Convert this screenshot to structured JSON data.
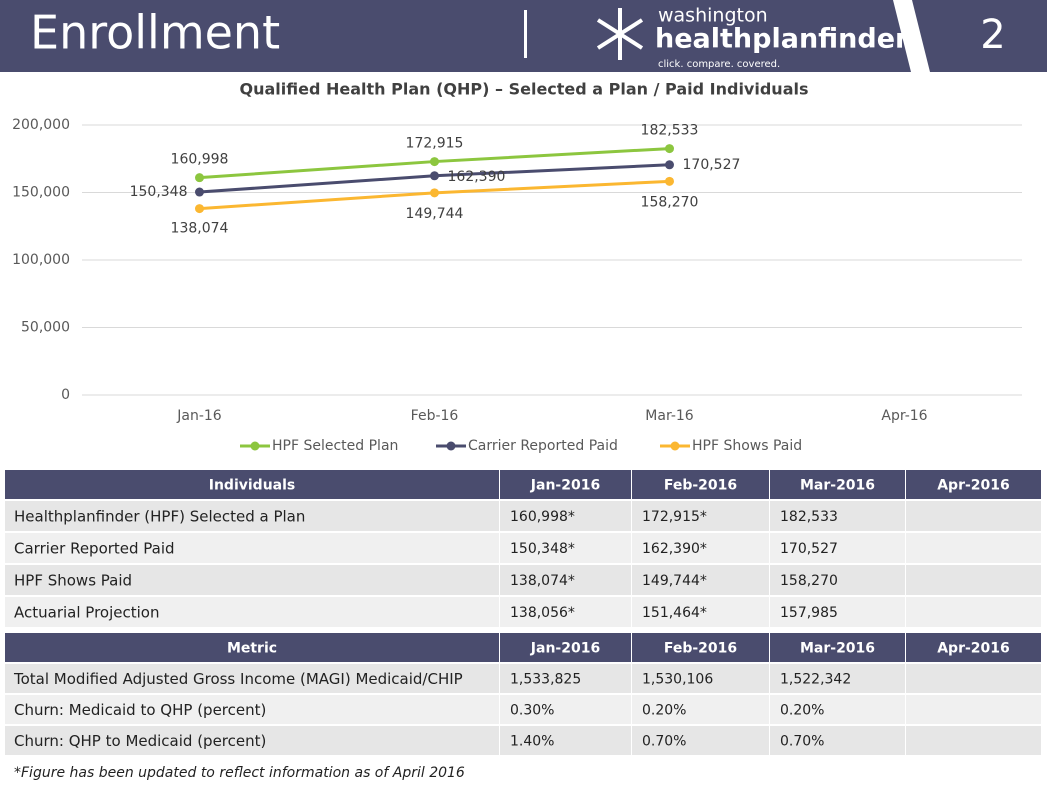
{
  "header": {
    "title": "Enrollment",
    "logo_top": "washington",
    "logo_main": "healthplanfinder",
    "tagline": "click. compare. covered.",
    "page_number": "2"
  },
  "chart_data": {
    "type": "line",
    "title": "Qualified Health Plan (QHP) – Selected a Plan / Paid Individuals",
    "categories": [
      "Jan-16",
      "Feb-16",
      "Mar-16",
      "Apr-16"
    ],
    "series": [
      {
        "name": "HPF Selected Plan",
        "color": "#8cc63f",
        "values": [
          160998,
          172915,
          182533,
          null
        ],
        "value_labels": [
          "160,998",
          "172,915",
          "182,533",
          null
        ]
      },
      {
        "name": "Carrier Reported Paid",
        "color": "#4a4c6e",
        "values": [
          150348,
          162390,
          170527,
          null
        ],
        "value_labels": [
          "150,348",
          "162,390",
          "170,527",
          null
        ]
      },
      {
        "name": "HPF Shows Paid",
        "color": "#fbb731",
        "values": [
          138074,
          149744,
          158270,
          null
        ],
        "value_labels": [
          "138,074",
          "149,744",
          "158,270",
          null
        ]
      }
    ],
    "ylim": [
      0,
      200000
    ],
    "yticks": [
      0,
      {
        "value": 50000,
        "label": "50,000"
      },
      {
        "value": 100000,
        "label": "100,000"
      },
      {
        "value": 150000,
        "label": "150,000"
      },
      {
        "value": 200000,
        "label": "200,000"
      }
    ],
    "grid": true,
    "legend": "bottom"
  },
  "tables": [
    {
      "header": [
        "Individuals",
        "Jan-2016",
        "Feb-2016",
        "Mar-2016",
        "Apr-2016"
      ],
      "rows": [
        [
          "Healthplanfinder (HPF) Selected a Plan",
          "160,998*",
          "172,915*",
          "182,533"
        ],
        [
          "Carrier Reported Paid",
          "150,348*",
          "162,390*",
          "170,527"
        ],
        [
          "HPF Shows Paid",
          "138,074*",
          "149,744*",
          "158,270"
        ],
        [
          "Actuarial Projection",
          "138,056*",
          "151,464*",
          "157,985"
        ]
      ]
    },
    {
      "header": [
        "Metric",
        "Jan-2016",
        "Feb-2016",
        "Mar-2016",
        "Apr-2016"
      ],
      "rows": [
        [
          "Total Modified Adjusted Gross Income (MAGI) Medicaid/CHIP",
          "1,533,825",
          "1,530,106",
          "1,522,342"
        ],
        [
          "Churn: Medicaid to QHP (percent)",
          "0.30%",
          "0.20%",
          "0.20%"
        ],
        [
          "Churn: QHP to Medicaid (percent)",
          "1.40%",
          "0.70%",
          "0.70%"
        ]
      ]
    }
  ],
  "footnote": "*Figure has been updated to reflect information as of April 2016"
}
